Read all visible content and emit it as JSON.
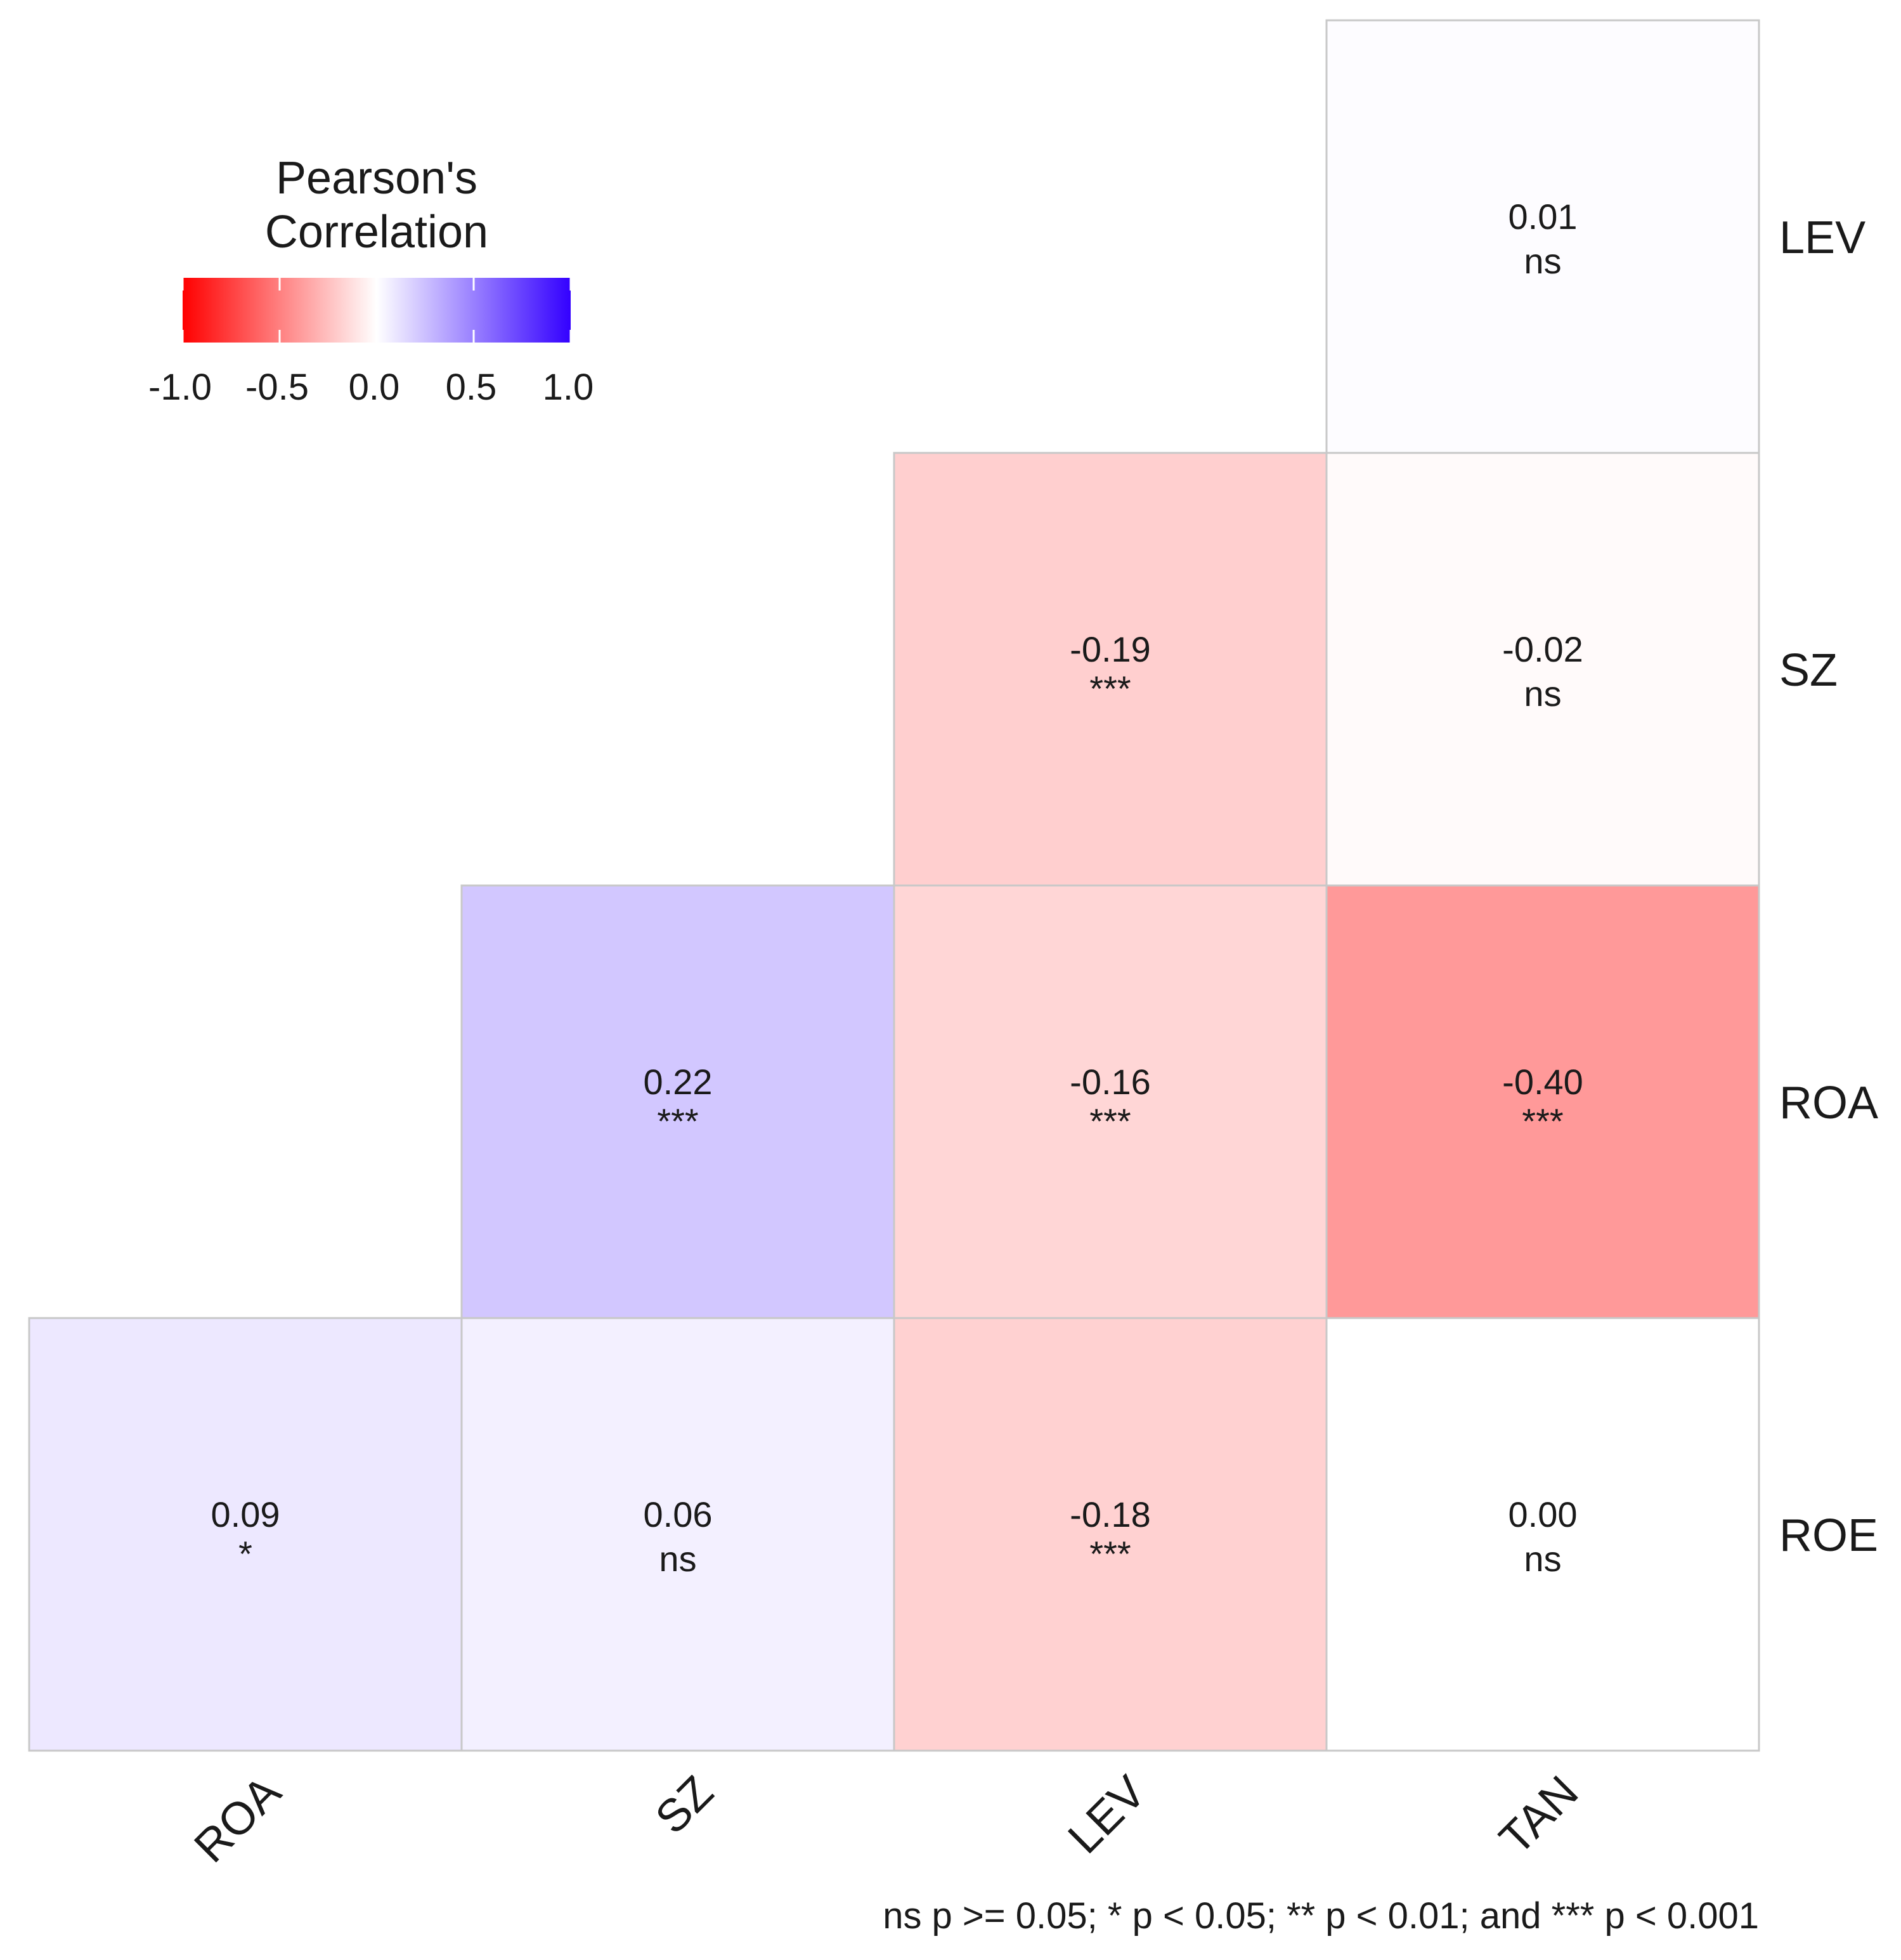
{
  "chart_data": {
    "type": "heatmap",
    "title": "",
    "x_categories": [
      "ROA",
      "SZ",
      "LEV",
      "TAN"
    ],
    "y_categories": [
      "LEV",
      "SZ",
      "ROA",
      "ROE"
    ],
    "cells": [
      {
        "x": "TAN",
        "y": "LEV",
        "value": 0.01,
        "value_label": "0.01",
        "sig": "ns"
      },
      {
        "x": "LEV",
        "y": "SZ",
        "value": -0.19,
        "value_label": "-0.19",
        "sig": "***"
      },
      {
        "x": "TAN",
        "y": "SZ",
        "value": -0.02,
        "value_label": "-0.02",
        "sig": "ns"
      },
      {
        "x": "SZ",
        "y": "ROA",
        "value": 0.22,
        "value_label": "0.22",
        "sig": "***"
      },
      {
        "x": "LEV",
        "y": "ROA",
        "value": -0.16,
        "value_label": "-0.16",
        "sig": "***"
      },
      {
        "x": "TAN",
        "y": "ROA",
        "value": -0.4,
        "value_label": "-0.40",
        "sig": "***"
      },
      {
        "x": "ROA",
        "y": "ROE",
        "value": 0.09,
        "value_label": "0.09",
        "sig": "*"
      },
      {
        "x": "SZ",
        "y": "ROE",
        "value": 0.06,
        "value_label": "0.06",
        "sig": "ns"
      },
      {
        "x": "LEV",
        "y": "ROE",
        "value": -0.18,
        "value_label": "-0.18",
        "sig": "***"
      },
      {
        "x": "TAN",
        "y": "ROE",
        "value": 0.0,
        "value_label": "0.00",
        "sig": "ns"
      }
    ],
    "legend": {
      "title_lines": [
        "Pearson's",
        "Correlation"
      ],
      "range": [
        -1.0,
        1.0
      ],
      "ticks": [
        -1.0,
        -0.5,
        0.0,
        0.5,
        1.0
      ],
      "tick_labels": [
        "-1.0",
        "-0.5",
        "0.0",
        "0.5",
        "1.0"
      ],
      "low_color": "#ff0000",
      "mid_color": "#ffffff",
      "high_color": "#3300ff",
      "placement": "top-left"
    },
    "footnote": "ns p >= 0.05; * p < 0.05; ** p < 0.01; and *** p < 0.001",
    "y_axis_position": "right",
    "grid": false
  }
}
